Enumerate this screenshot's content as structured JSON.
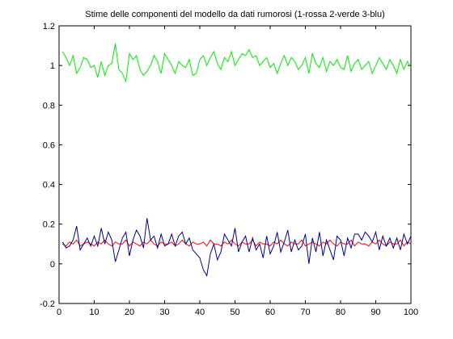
{
  "chart_data": {
    "type": "line",
    "title": "Stime delle componenti del modello da dati rumorosi (1-rossa 2-verde 3-blu)",
    "xlabel": "",
    "ylabel": "",
    "xlim": [
      0,
      100
    ],
    "ylim": [
      -0.2,
      1.2
    ],
    "xticks": [
      0,
      10,
      20,
      30,
      40,
      50,
      60,
      70,
      80,
      90,
      100
    ],
    "xtick_labels": [
      "0",
      "10",
      "20",
      "30",
      "40",
      "50",
      "60",
      "70",
      "80",
      "90",
      "100"
    ],
    "yticks": [
      -0.2,
      0,
      0.2,
      0.4,
      0.6,
      0.8,
      1,
      1.2
    ],
    "ytick_labels": [
      "-0.2",
      "0",
      "0.2",
      "0.4",
      "0.6",
      "0.8",
      "1",
      "1.2"
    ],
    "grid": false,
    "legend": false,
    "x": [
      1,
      2,
      3,
      4,
      5,
      6,
      7,
      8,
      9,
      10,
      11,
      12,
      13,
      14,
      15,
      16,
      17,
      18,
      19,
      20,
      21,
      22,
      23,
      24,
      25,
      26,
      27,
      28,
      29,
      30,
      31,
      32,
      33,
      34,
      35,
      36,
      37,
      38,
      39,
      40,
      41,
      42,
      43,
      44,
      45,
      46,
      47,
      48,
      49,
      50,
      51,
      52,
      53,
      54,
      55,
      56,
      57,
      58,
      59,
      60,
      61,
      62,
      63,
      64,
      65,
      66,
      67,
      68,
      69,
      70,
      71,
      72,
      73,
      74,
      75,
      76,
      77,
      78,
      79,
      80,
      81,
      82,
      83,
      84,
      85,
      86,
      87,
      88,
      89,
      90,
      91,
      92,
      93,
      94,
      95,
      96,
      97,
      98,
      99,
      100
    ],
    "series": [
      {
        "color": "#ff0000",
        "values": [
          0.1,
          0.09,
          0.11,
          0.1,
          0.12,
          0.09,
          0.1,
          0.11,
          0.1,
          0.09,
          0.11,
          0.1,
          0.12,
          0.1,
          0.09,
          0.11,
          0.1,
          0.1,
          0.12,
          0.09,
          0.11,
          0.1,
          0.09,
          0.11,
          0.1,
          0.12,
          0.1,
          0.09,
          0.11,
          0.1,
          0.1,
          0.11,
          0.09,
          0.1,
          0.12,
          0.1,
          0.09,
          0.11,
          0.1,
          0.1,
          0.11,
          0.09,
          0.12,
          0.1,
          0.1,
          0.09,
          0.11,
          0.1,
          0.12,
          0.1,
          0.09,
          0.11,
          0.1,
          0.1,
          0.12,
          0.09,
          0.11,
          0.1,
          0.1,
          0.09,
          0.11,
          0.1,
          0.12,
          0.1,
          0.09,
          0.11,
          0.1,
          0.1,
          0.12,
          0.09,
          0.1,
          0.11,
          0.1,
          0.09,
          0.11,
          0.1,
          0.12,
          0.1,
          0.09,
          0.11,
          0.1,
          0.1,
          0.12,
          0.09,
          0.11,
          0.1,
          0.1,
          0.09,
          0.11,
          0.1,
          0.12,
          0.1,
          0.09,
          0.11,
          0.1,
          0.1,
          0.12,
          0.09,
          0.11,
          0.1
        ]
      },
      {
        "color": "#00ee00",
        "values": [
          1.07,
          1.04,
          1.0,
          1.05,
          0.96,
          0.99,
          1.04,
          1.03,
          0.99,
          1.0,
          0.94,
          1.02,
          0.95,
          1.0,
          1.01,
          1.11,
          0.98,
          0.96,
          0.92,
          1.06,
          1.03,
          1.05,
          0.98,
          0.95,
          0.97,
          1.0,
          1.05,
          1.02,
          0.96,
          1.06,
          1.03,
          1.0,
          0.96,
          1.02,
          1.0,
          0.99,
          1.03,
          0.95,
          0.96,
          1.03,
          1.05,
          1.0,
          1.04,
          1.07,
          1.01,
          0.98,
          1.04,
          1.02,
          1.07,
          1.0,
          1.03,
          1.06,
          1.05,
          1.08,
          1.04,
          1.05,
          1.0,
          1.02,
          1.04,
          0.99,
          1.01,
          0.96,
          1.01,
          1.05,
          1.0,
          1.04,
          1.02,
          0.98,
          1.0,
          1.04,
          0.96,
          1.06,
          1.01,
          0.99,
          1.04,
          0.97,
          1.02,
          1.0,
          1.03,
          0.99,
          0.98,
          1.05,
          0.97,
          1.01,
          1.03,
          0.98,
          1.0,
          1.02,
          0.96,
          1.0,
          1.04,
          1.01,
          0.98,
          1.03,
          1.0,
          0.96,
          1.03,
          0.98,
          1.02,
          0.99
        ]
      },
      {
        "color": "#00008b",
        "values": [
          0.11,
          0.08,
          0.09,
          0.12,
          0.19,
          0.07,
          0.1,
          0.13,
          0.09,
          0.14,
          0.09,
          0.18,
          0.1,
          0.16,
          0.12,
          0.01,
          0.07,
          0.13,
          0.16,
          0.04,
          0.12,
          0.17,
          0.14,
          0.08,
          0.23,
          0.12,
          0.14,
          0.08,
          0.15,
          0.09,
          0.1,
          0.15,
          0.09,
          0.14,
          0.16,
          0.1,
          0.13,
          0.07,
          0.05,
          0.03,
          -0.03,
          -0.06,
          0.05,
          0.1,
          0.02,
          0.06,
          0.15,
          0.12,
          0.09,
          0.18,
          0.06,
          0.11,
          0.14,
          0.06,
          0.13,
          0.07,
          0.1,
          0.03,
          0.14,
          0.05,
          0.09,
          0.16,
          0.06,
          0.11,
          0.17,
          0.06,
          0.12,
          0.07,
          0.09,
          0.15,
          0.0,
          0.13,
          0.06,
          0.16,
          0.04,
          0.12,
          0.07,
          0.02,
          0.14,
          0.12,
          0.04,
          0.13,
          0.08,
          0.15,
          0.15,
          0.12,
          0.16,
          0.14,
          0.11,
          0.16,
          0.07,
          0.14,
          0.09,
          0.13,
          0.08,
          0.13,
          0.07,
          0.15,
          0.1,
          0.14
        ]
      }
    ]
  }
}
